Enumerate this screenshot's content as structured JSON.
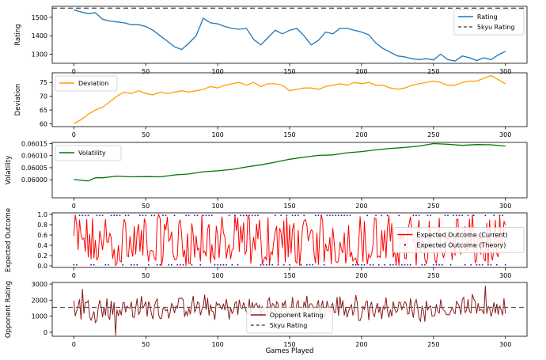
{
  "chart_data": [
    {
      "type": "line",
      "ylabel": "Rating",
      "xlim": [
        -15,
        315
      ],
      "ylim": [
        1250,
        1560
      ],
      "xticks": [
        0,
        50,
        100,
        150,
        200,
        250,
        300
      ],
      "yticks": [
        1300,
        1400,
        1500
      ],
      "legend": "top-right",
      "series": [
        {
          "name": "Rating",
          "color": "#1f77b4",
          "style": "solid",
          "x": [
            0,
            5,
            10,
            15,
            20,
            25,
            30,
            35,
            40,
            45,
            50,
            55,
            60,
            65,
            70,
            75,
            80,
            85,
            90,
            95,
            100,
            105,
            110,
            115,
            120,
            125,
            130,
            135,
            140,
            145,
            150,
            155,
            160,
            165,
            170,
            175,
            180,
            185,
            190,
            195,
            200,
            205,
            210,
            215,
            220,
            225,
            230,
            235,
            240,
            245,
            250,
            255,
            260,
            265,
            270,
            275,
            280,
            285,
            290,
            295,
            300
          ],
          "y": [
            1540,
            1530,
            1520,
            1525,
            1490,
            1480,
            1475,
            1470,
            1460,
            1460,
            1450,
            1430,
            1400,
            1370,
            1340,
            1325,
            1360,
            1400,
            1495,
            1470,
            1465,
            1450,
            1440,
            1435,
            1440,
            1380,
            1350,
            1390,
            1430,
            1410,
            1430,
            1440,
            1400,
            1350,
            1375,
            1420,
            1410,
            1440,
            1440,
            1430,
            1420,
            1405,
            1360,
            1330,
            1310,
            1290,
            1285,
            1275,
            1270,
            1275,
            1268,
            1300,
            1270,
            1262,
            1290,
            1280,
            1265,
            1280,
            1270,
            1295,
            1315
          ]
        },
        {
          "name": "5kyu Rating",
          "color": "#555555",
          "style": "dashed",
          "x": [
            -15,
            315
          ],
          "y": [
            1550,
            1550
          ]
        }
      ]
    },
    {
      "type": "line",
      "ylabel": "Deviation",
      "xlim": [
        -15,
        315
      ],
      "ylim": [
        59,
        78.5
      ],
      "xticks": [
        0,
        50,
        100,
        150,
        200,
        250,
        300
      ],
      "yticks": [
        60,
        65,
        70,
        75
      ],
      "legend": "top-left",
      "series": [
        {
          "name": "Deviation",
          "color": "#ff9f00",
          "style": "solid",
          "x": [
            0,
            5,
            10,
            15,
            20,
            25,
            30,
            35,
            40,
            45,
            50,
            55,
            60,
            65,
            70,
            75,
            80,
            85,
            90,
            95,
            100,
            105,
            110,
            115,
            120,
            125,
            130,
            135,
            140,
            145,
            150,
            155,
            160,
            165,
            170,
            175,
            180,
            185,
            190,
            195,
            200,
            205,
            210,
            215,
            220,
            225,
            230,
            235,
            240,
            245,
            250,
            255,
            260,
            265,
            270,
            275,
            280,
            285,
            290,
            295,
            300
          ],
          "y": [
            60,
            61.5,
            63.5,
            65,
            66,
            68,
            70,
            71.5,
            71,
            72,
            71,
            70.5,
            71.5,
            71,
            71.5,
            72,
            71.5,
            72,
            72.5,
            73.5,
            73,
            74,
            74.5,
            75,
            74,
            75,
            73.5,
            74.5,
            74.5,
            74,
            72,
            72.5,
            73,
            73,
            72.5,
            73.5,
            74,
            74.5,
            74,
            75,
            74.5,
            75,
            74,
            74,
            73,
            72.5,
            73,
            74,
            74.5,
            75,
            75.5,
            75,
            74,
            74,
            75,
            75.5,
            75.5,
            76.5,
            77.5,
            76,
            74.5
          ]
        }
      ]
    },
    {
      "type": "line",
      "ylabel": "Volatility",
      "xlim": [
        -15,
        315
      ],
      "ylim": [
        0.059925,
        0.060155
      ],
      "xticks": [
        0,
        50,
        100,
        150,
        200,
        250,
        300
      ],
      "yticks": [
        0.06,
        0.06005,
        0.0601,
        0.06015
      ],
      "ytick_labels": [
        "0.06000",
        "0.06005",
        "0.06010",
        "0.06015"
      ],
      "legend": "top-left",
      "series": [
        {
          "name": "Volatility",
          "color": "#007700",
          "style": "solid",
          "x": [
            0,
            10,
            15,
            20,
            30,
            40,
            50,
            60,
            70,
            80,
            90,
            100,
            110,
            120,
            130,
            140,
            150,
            160,
            170,
            180,
            190,
            200,
            210,
            220,
            230,
            240,
            250,
            260,
            270,
            280,
            290,
            300
          ],
          "y": [
            0.060001,
            0.059995,
            0.060008,
            0.060008,
            0.060015,
            0.060012,
            0.060013,
            0.060012,
            0.06002,
            0.060024,
            0.060033,
            0.060037,
            0.060043,
            0.060053,
            0.060062,
            0.060073,
            0.060085,
            0.060094,
            0.060101,
            0.060103,
            0.060112,
            0.060117,
            0.060124,
            0.06013,
            0.060134,
            0.06014,
            0.06015,
            0.060147,
            0.060143,
            0.060146,
            0.060145,
            0.06014
          ]
        }
      ]
    },
    {
      "type": "line",
      "ylabel": "Expected Outcome",
      "xlim": [
        -15,
        315
      ],
      "ylim": [
        -0.03,
        1.03
      ],
      "xticks": [
        0,
        50,
        100,
        150,
        200,
        250,
        300
      ],
      "yticks": [
        0,
        0.2,
        0.4,
        0.6,
        0.8,
        1
      ],
      "ytick_labels": [
        "0.0",
        "0.2",
        "0.4",
        "0.6",
        "0.8",
        "1.0"
      ],
      "legend": "right",
      "series": [
        {
          "name": "Expected Outcome (Current)",
          "color": "#ff0000",
          "style": "solid",
          "x_start": 0,
          "x_end": 300
        },
        {
          "name": "Expected Outcome (Theory)",
          "color": "#3a0ca3",
          "style": "dots",
          "x_start": 0,
          "x_end": 300
        }
      ]
    },
    {
      "type": "line",
      "ylabel": "Opponent Rating",
      "xlabel": "Games Played",
      "xlim": [
        -15,
        315
      ],
      "ylim": [
        -250,
        3100
      ],
      "xticks": [
        0,
        50,
        100,
        150,
        200,
        250,
        300
      ],
      "yticks": [
        0,
        1000,
        2000,
        3000
      ],
      "legend": "bottom-center",
      "series": [
        {
          "name": "Opponent Rating",
          "color": "#8b1a1a",
          "style": "solid",
          "x_start": 0,
          "x_end": 300
        },
        {
          "name": "5kyu Rating",
          "color": "#555555",
          "style": "dashed",
          "x": [
            -15,
            315
          ],
          "y": [
            1550,
            1550
          ]
        }
      ]
    }
  ]
}
